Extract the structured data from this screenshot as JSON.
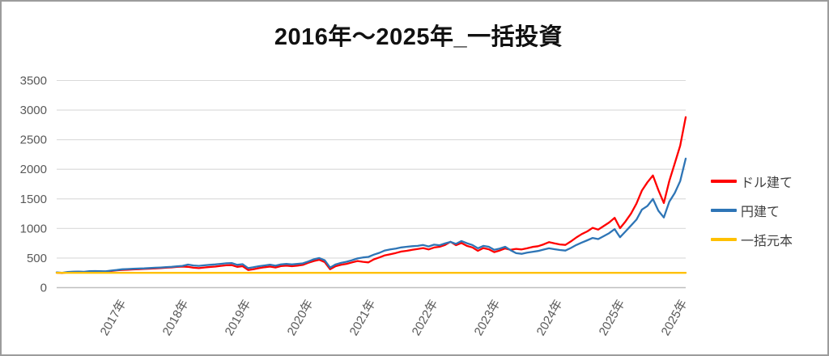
{
  "chart_data": {
    "type": "line",
    "title": "2016年～2025年_一括投資",
    "xlabel": "",
    "ylabel": "",
    "ylim": [
      0,
      3500
    ],
    "y_ticks": [
      0,
      500,
      1000,
      1500,
      2000,
      2500,
      3000,
      3500
    ],
    "x_tick_labels": [
      "2017年",
      "2018年",
      "2019年",
      "2020年",
      "2021年",
      "2022年",
      "2023年",
      "2024年",
      "2025年",
      "2025年"
    ],
    "x_range_note": "monthly estimates read from chart, Jan 2016 through Aug 2025",
    "grid": "horizontal",
    "legend_position": "right",
    "colors": {
      "grid": "#d9d9d9",
      "axis_line": "#bfbfbf",
      "tick_text": "#595959",
      "legend_text": "#404040",
      "title_text": "#111111"
    },
    "series": [
      {
        "name": "ドル建て",
        "color": "#ff0000",
        "values": [
          252,
          246,
          258,
          264,
          268,
          262,
          272,
          276,
          274,
          271,
          282,
          292,
          300,
          304,
          308,
          312,
          316,
          320,
          326,
          330,
          336,
          342,
          350,
          356,
          352,
          336,
          330,
          340,
          348,
          356,
          368,
          378,
          380,
          352,
          362,
          298,
          312,
          330,
          344,
          356,
          340,
          364,
          372,
          362,
          372,
          384,
          420,
          450,
          470,
          432,
          310,
          362,
          386,
          402,
          426,
          450,
          436,
          426,
          478,
          510,
          545,
          565,
          585,
          610,
          622,
          638,
          654,
          668,
          645,
          678,
          690,
          720,
          775,
          718,
          755,
          705,
          680,
          622,
          668,
          648,
          600,
          628,
          662,
          640,
          655,
          645,
          665,
          688,
          700,
          730,
          768,
          748,
          730,
          722,
          780,
          848,
          905,
          950,
          1010,
          980,
          1040,
          1100,
          1180,
          1005,
          1120,
          1250,
          1420,
          1640,
          1780,
          1895,
          1650,
          1430,
          1800,
          2100,
          2400,
          2880
        ]
      },
      {
        "name": "円建て",
        "color": "#2e75b6",
        "values": [
          258,
          252,
          264,
          270,
          272,
          268,
          277,
          280,
          278,
          276,
          288,
          298,
          310,
          314,
          318,
          322,
          326,
          331,
          336,
          340,
          346,
          352,
          360,
          368,
          390,
          374,
          368,
          378,
          386,
          392,
          402,
          412,
          416,
          386,
          396,
          330,
          345,
          362,
          374,
          388,
          370,
          392,
          400,
          392,
          400,
          410,
          442,
          478,
          500,
          462,
          338,
          392,
          418,
          438,
          464,
          494,
          510,
          520,
          558,
          588,
          628,
          645,
          660,
          680,
          690,
          700,
          706,
          720,
          696,
          726,
          716,
          746,
          772,
          740,
          788,
          750,
          720,
          665,
          706,
          690,
          640,
          660,
          690,
          632,
          582,
          572,
          592,
          606,
          620,
          642,
          665,
          650,
          636,
          626,
          670,
          720,
          762,
          800,
          840,
          820,
          870,
          920,
          988,
          852,
          950,
          1048,
          1150,
          1318,
          1380,
          1498,
          1300,
          1185,
          1450,
          1600,
          1800,
          2180
        ]
      },
      {
        "name": "一括元本",
        "color": "#ffc000",
        "constant": 250
      }
    ]
  }
}
